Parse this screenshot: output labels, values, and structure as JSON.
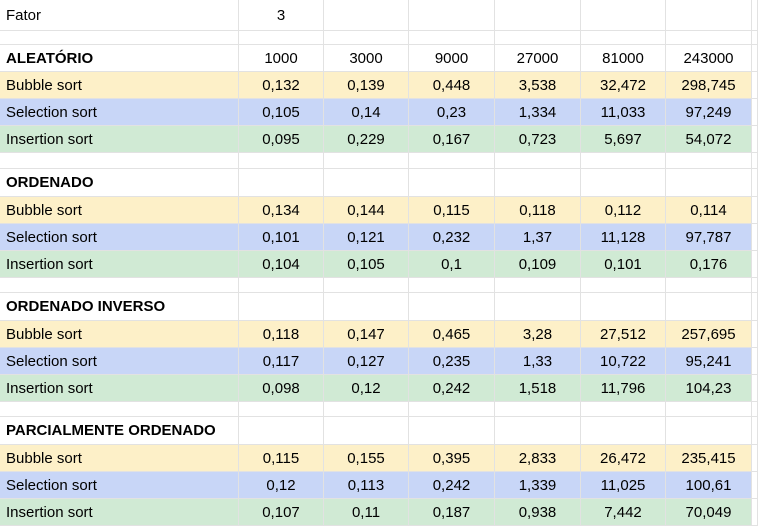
{
  "fator": {
    "label": "Fator",
    "value": "3"
  },
  "sizes": [
    "1000",
    "3000",
    "9000",
    "27000",
    "81000",
    "243000"
  ],
  "sections": [
    {
      "title": "ALEATÓRIO",
      "rows": [
        {
          "name": "Bubble sort",
          "values": [
            "0,132",
            "0,139",
            "0,448",
            "3,538",
            "32,472",
            "298,745"
          ]
        },
        {
          "name": "Selection sort",
          "values": [
            "0,105",
            "0,14",
            "0,23",
            "1,334",
            "11,033",
            "97,249"
          ]
        },
        {
          "name": "Insertion sort",
          "values": [
            "0,095",
            "0,229",
            "0,167",
            "0,723",
            "5,697",
            "54,072"
          ]
        }
      ]
    },
    {
      "title": "ORDENADO",
      "rows": [
        {
          "name": "Bubble sort",
          "values": [
            "0,134",
            "0,144",
            "0,115",
            "0,118",
            "0,112",
            "0,114"
          ]
        },
        {
          "name": "Selection sort",
          "values": [
            "0,101",
            "0,121",
            "0,232",
            "1,37",
            "11,128",
            "97,787"
          ]
        },
        {
          "name": "Insertion sort",
          "values": [
            "0,104",
            "0,105",
            "0,1",
            "0,109",
            "0,101",
            "0,176"
          ]
        }
      ]
    },
    {
      "title": "ORDENADO INVERSO",
      "rows": [
        {
          "name": "Bubble sort",
          "values": [
            "0,118",
            "0,147",
            "0,465",
            "3,28",
            "27,512",
            "257,695"
          ]
        },
        {
          "name": "Selection sort",
          "values": [
            "0,117",
            "0,127",
            "0,235",
            "1,33",
            "10,722",
            "95,241"
          ]
        },
        {
          "name": "Insertion sort",
          "values": [
            "0,098",
            "0,12",
            "0,242",
            "1,518",
            "11,796",
            "104,23"
          ]
        }
      ]
    },
    {
      "title": "PARCIALMENTE ORDENADO",
      "rows": [
        {
          "name": "Bubble sort",
          "values": [
            "0,115",
            "0,155",
            "0,395",
            "2,833",
            "26,472",
            "235,415"
          ]
        },
        {
          "name": "Selection sort",
          "values": [
            "0,12",
            "0,113",
            "0,242",
            "1,339",
            "11,025",
            "100,61"
          ]
        },
        {
          "name": "Insertion sort",
          "values": [
            "0,107",
            "0,11",
            "0,187",
            "0,938",
            "7,442",
            "70,049"
          ]
        }
      ]
    }
  ]
}
